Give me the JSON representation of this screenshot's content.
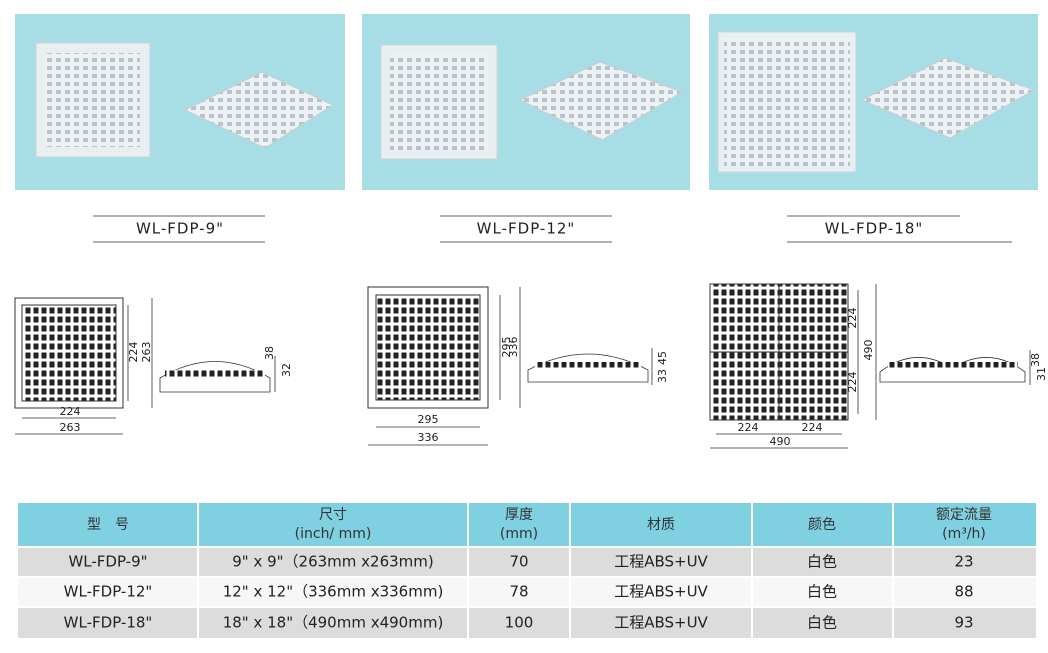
{
  "products": [
    {
      "label": "WL-FDP-9\"",
      "dims": {
        "bottom_inner": 224,
        "bottom_outer": 263,
        "side_inner": 224,
        "side_outer": 263,
        "profile_a": 38,
        "profile_b": 32
      }
    },
    {
      "label": "WL-FDP-12\"",
      "dims": {
        "bottom_inner": 295,
        "bottom_outer": 336,
        "side_inner": 295,
        "side_outer": 336,
        "profile_a": 45,
        "profile_b": 33
      }
    },
    {
      "label": "WL-FDP-18\"",
      "dims": {
        "bottom_left": 224,
        "bottom_right": 224,
        "bottom_outer": 490,
        "side_top": 224,
        "side_bottom": 224,
        "side_outer": 490,
        "profile_a": 38,
        "profile_b": 31
      }
    }
  ],
  "table": {
    "headers": [
      [
        "型　号"
      ],
      [
        "尺寸",
        "(inch/ mm)"
      ],
      [
        "厚度",
        "(mm)"
      ],
      [
        "材质"
      ],
      [
        "颜色"
      ],
      [
        "额定流量",
        "(m³/h)"
      ]
    ],
    "rows": [
      [
        "WL-FDP-9\"",
        "9\" x 9\"（263mm x263mm)",
        "70",
        "工程ABS+UV",
        "白色",
        "23"
      ],
      [
        "WL-FDP-12\"",
        "12\" x 12\"（336mm x336mm)",
        "78",
        "工程ABS+UV",
        "白色",
        "88"
      ],
      [
        "WL-FDP-18\"",
        "18\" x 18\"（490mm x490mm)",
        "100",
        "工程ABS+UV",
        "白色",
        "93"
      ]
    ]
  }
}
